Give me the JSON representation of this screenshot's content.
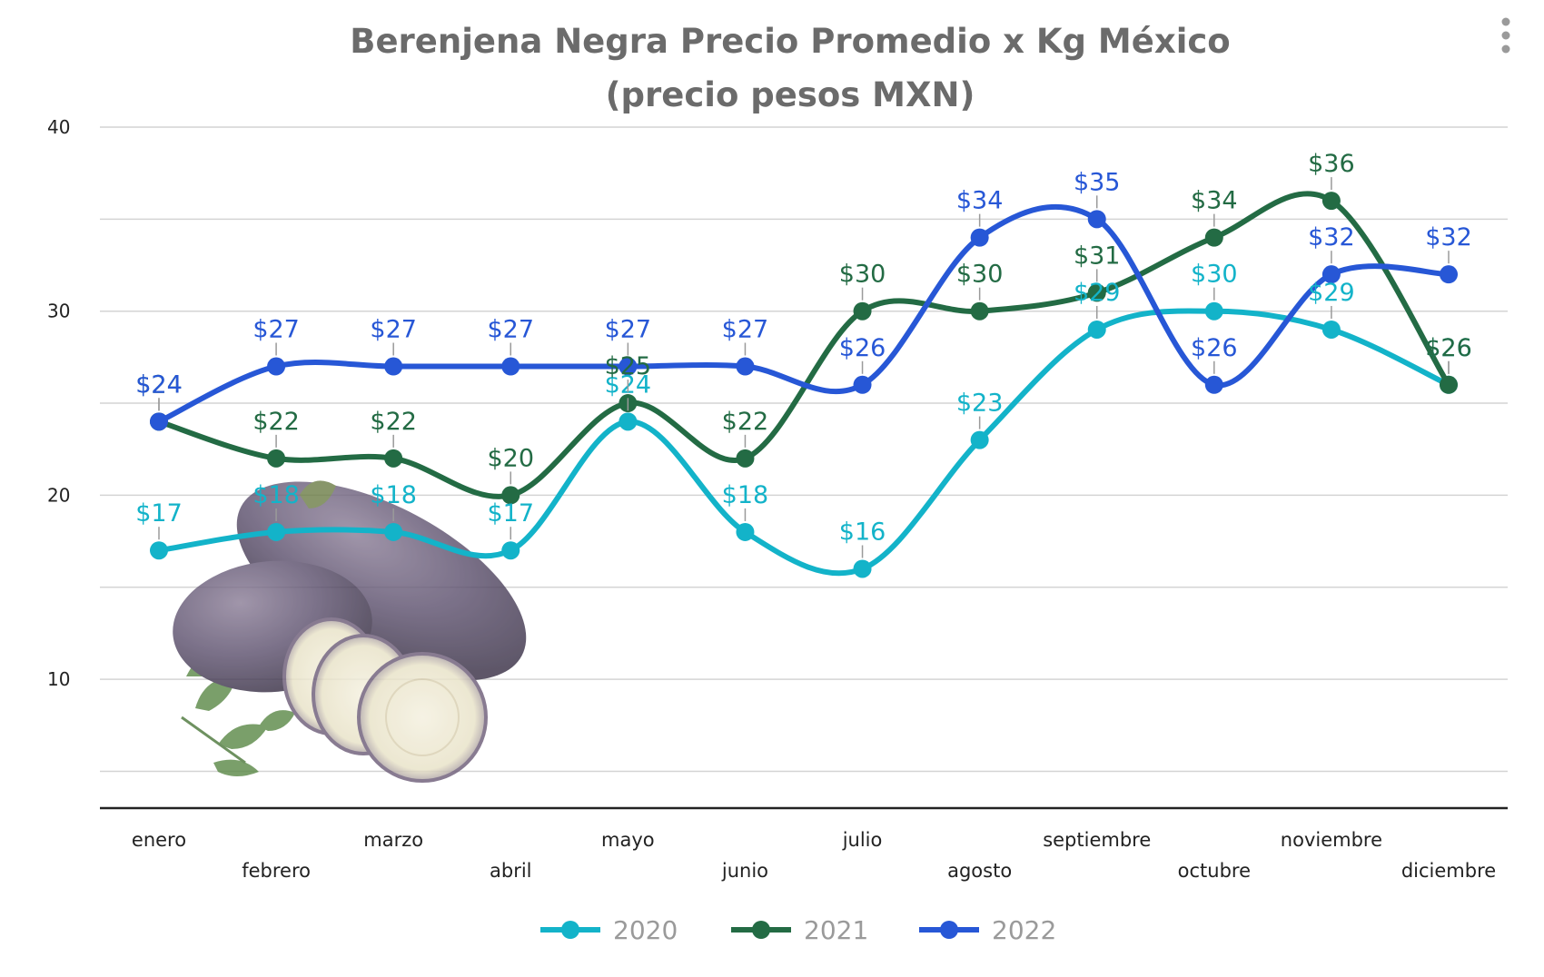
{
  "chart_data": {
    "type": "line",
    "title": "Berenjena Negra Precio Promedio x Kg México",
    "subtitle": "(precio pesos MXN)",
    "categories": [
      "enero",
      "febrero",
      "marzo",
      "abril",
      "mayo",
      "junio",
      "julio",
      "agosto",
      "septiembre",
      "octubre",
      "noviembre",
      "diciembre"
    ],
    "yticks": [
      10,
      20,
      30,
      40
    ],
    "ylim": [
      3,
      40
    ],
    "grid": true,
    "legend_position": "bottom",
    "smooth": true,
    "series": [
      {
        "name": "2020",
        "color": "#13b3c9",
        "values": [
          17,
          18,
          18,
          17,
          24,
          18,
          16,
          23,
          29,
          30,
          29,
          26
        ],
        "labels": [
          "$17",
          "$18",
          "$18",
          "$17",
          "$24",
          "$18",
          "$16",
          "$23",
          "$29",
          "$30",
          "$29",
          "$26"
        ]
      },
      {
        "name": "2021",
        "color": "#236b44",
        "values": [
          24,
          22,
          22,
          20,
          25,
          22,
          30,
          30,
          31,
          34,
          36,
          26
        ],
        "labels": [
          "$24",
          "$22",
          "$22",
          "$20",
          "$25",
          "$22",
          "$30",
          "$30",
          "$31",
          "$34",
          "$36",
          "$26"
        ]
      },
      {
        "name": "2022",
        "color": "#2757d6",
        "values": [
          24,
          27,
          27,
          27,
          27,
          27,
          26,
          34,
          35,
          26,
          32,
          32
        ],
        "labels": [
          "$24",
          "$27",
          "$27",
          "$27",
          "$27",
          "$27",
          "$26",
          "$34",
          "$35",
          "$26",
          "$32",
          "$32"
        ]
      }
    ]
  },
  "decor": {
    "image": "eggplant-picture"
  },
  "menu": {
    "icon": "more-vert-icon"
  }
}
